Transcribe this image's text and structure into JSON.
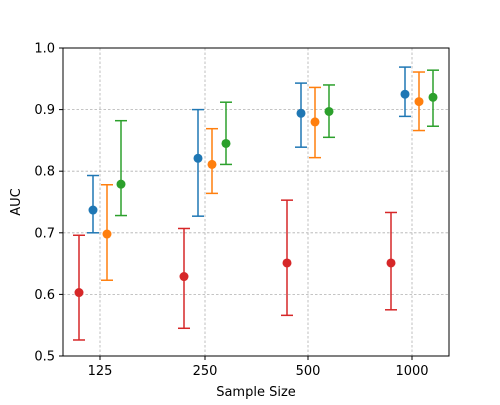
{
  "chart_data": {
    "type": "scatter",
    "subtype": "errorbar",
    "title": "",
    "xlabel": "Sample Size",
    "ylabel": "AUC",
    "categories": [
      "125",
      "250",
      "500",
      "1000"
    ],
    "ylim": [
      0.5,
      1.0
    ],
    "yticks": [
      "0.5",
      "0.6",
      "0.7",
      "0.8",
      "0.9",
      "1.0"
    ],
    "grid": true,
    "legend": "none",
    "series": [
      {
        "color": "#1f77b4",
        "values": [
          0.737,
          0.821,
          0.894,
          0.925
        ],
        "lower": [
          0.7,
          0.727,
          0.839,
          0.889
        ],
        "upper": [
          0.793,
          0.9,
          0.943,
          0.969
        ]
      },
      {
        "color": "#ff7f0e",
        "values": [
          0.698,
          0.811,
          0.88,
          0.913
        ],
        "lower": [
          0.623,
          0.764,
          0.822,
          0.866
        ],
        "upper": [
          0.778,
          0.869,
          0.936,
          0.961
        ]
      },
      {
        "color": "#2ca02c",
        "values": [
          0.779,
          0.845,
          0.897,
          0.92
        ],
        "lower": [
          0.728,
          0.811,
          0.855,
          0.873
        ],
        "upper": [
          0.882,
          0.912,
          0.94,
          0.964
        ]
      },
      {
        "color": "#d62728",
        "values": [
          0.603,
          0.629,
          0.651,
          0.651
        ],
        "lower": [
          0.526,
          0.545,
          0.566,
          0.575
        ],
        "upper": [
          0.696,
          0.707,
          0.753,
          0.733
        ]
      }
    ]
  }
}
